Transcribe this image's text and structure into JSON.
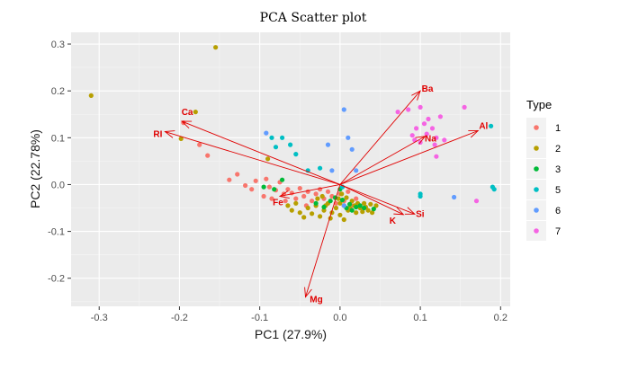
{
  "chart_data": {
    "type": "scatter",
    "title": "PCA Scatter plot",
    "xlabel": "PC1 (27.9%)",
    "ylabel": "PC2 (22.78%)",
    "xlim": [
      -0.335,
      0.212
    ],
    "ylim": [
      -0.26,
      0.325
    ],
    "x_ticks": [
      -0.3,
      -0.2,
      -0.1,
      0.0,
      0.1,
      0.2
    ],
    "x_tick_labels": [
      "-0.3",
      "-0.2",
      "-0.1",
      "0.0",
      "0.1",
      "0.2"
    ],
    "y_ticks": [
      -0.2,
      -0.1,
      0.0,
      0.1,
      0.2,
      0.3
    ],
    "y_tick_labels": [
      "-0.2",
      "-0.1",
      "0.0",
      "0.1",
      "0.2",
      "0.3"
    ],
    "grid": true,
    "legend": {
      "title": "Type",
      "position": "right"
    },
    "colors": {
      "1": "#F8766D",
      "2": "#B79F00",
      "3": "#00BA38",
      "5": "#00BFC4",
      "6": "#619CFF",
      "7": "#F564E3",
      "arrow": "#e00000"
    },
    "loadings": [
      {
        "label": "Ba",
        "x": 0.1,
        "y": 0.2
      },
      {
        "label": "Al",
        "x": 0.172,
        "y": 0.115
      },
      {
        "label": "Na",
        "x": 0.106,
        "y": 0.103
      },
      {
        "label": "Ca",
        "x": -0.197,
        "y": 0.135
      },
      {
        "label": "RI",
        "x": -0.218,
        "y": 0.113
      },
      {
        "label": "Fe",
        "x": -0.075,
        "y": -0.025
      },
      {
        "label": "Si",
        "x": 0.093,
        "y": -0.063
      },
      {
        "label": "K",
        "x": 0.079,
        "y": -0.064
      },
      {
        "label": "Mg",
        "x": -0.043,
        "y": -0.24
      }
    ],
    "series": [
      {
        "name": "1",
        "points": [
          [
            -0.195,
            0.132
          ],
          [
            -0.175,
            0.085
          ],
          [
            -0.165,
            0.062
          ],
          [
            -0.128,
            0.022
          ],
          [
            -0.138,
            0.01
          ],
          [
            -0.118,
            -0.002
          ],
          [
            -0.105,
            0.008
          ],
          [
            -0.092,
            0.012
          ],
          [
            -0.088,
            -0.005
          ],
          [
            -0.08,
            -0.012
          ],
          [
            -0.075,
            0.005
          ],
          [
            -0.07,
            -0.02
          ],
          [
            -0.065,
            -0.01
          ],
          [
            -0.06,
            -0.018
          ],
          [
            -0.055,
            -0.03
          ],
          [
            -0.05,
            -0.008
          ],
          [
            -0.045,
            -0.025
          ],
          [
            -0.04,
            -0.015
          ],
          [
            -0.035,
            -0.035
          ],
          [
            -0.03,
            -0.02
          ],
          [
            -0.025,
            -0.01
          ],
          [
            -0.02,
            -0.03
          ],
          [
            -0.015,
            -0.015
          ],
          [
            -0.01,
            -0.025
          ],
          [
            -0.005,
            -0.04
          ],
          [
            0.0,
            -0.02
          ],
          [
            0.005,
            -0.035
          ],
          [
            0.01,
            -0.015
          ],
          [
            0.015,
            -0.045
          ],
          [
            0.02,
            -0.03
          ],
          [
            -0.095,
            -0.025
          ],
          [
            -0.085,
            -0.03
          ],
          [
            -0.068,
            -0.035
          ],
          [
            -0.042,
            -0.045
          ],
          [
            -0.11,
            -0.01
          ]
        ]
      },
      {
        "name": "2",
        "points": [
          [
            -0.31,
            0.19
          ],
          [
            -0.155,
            0.293
          ],
          [
            -0.198,
            0.098
          ],
          [
            -0.18,
            0.155
          ],
          [
            -0.09,
            0.055
          ],
          [
            -0.065,
            -0.045
          ],
          [
            -0.06,
            -0.055
          ],
          [
            -0.055,
            -0.04
          ],
          [
            -0.05,
            -0.06
          ],
          [
            -0.045,
            -0.07
          ],
          [
            -0.04,
            -0.05
          ],
          [
            -0.035,
            -0.062
          ],
          [
            -0.03,
            -0.045
          ],
          [
            -0.025,
            -0.068
          ],
          [
            -0.02,
            -0.055
          ],
          [
            -0.015,
            -0.04
          ],
          [
            -0.01,
            -0.06
          ],
          [
            -0.005,
            -0.05
          ],
          [
            0.0,
            -0.065
          ],
          [
            0.005,
            -0.045
          ],
          [
            0.01,
            -0.055
          ],
          [
            0.015,
            -0.035
          ],
          [
            0.02,
            -0.06
          ],
          [
            0.025,
            -0.05
          ],
          [
            0.03,
            -0.04
          ],
          [
            0.035,
            -0.055
          ],
          [
            0.04,
            -0.06
          ],
          [
            0.045,
            -0.045
          ],
          [
            0.005,
            -0.075
          ],
          [
            -0.012,
            -0.072
          ],
          [
            0.0,
            -0.04
          ],
          [
            -0.002,
            -0.03
          ],
          [
            0.002,
            -0.02
          ],
          [
            0.008,
            -0.028
          ],
          [
            0.012,
            -0.05
          ],
          [
            0.018,
            -0.045
          ],
          [
            0.022,
            -0.04
          ],
          [
            0.028,
            -0.058
          ],
          [
            0.032,
            -0.048
          ],
          [
            0.038,
            -0.042
          ],
          [
            -0.028,
            -0.03
          ],
          [
            -0.022,
            -0.025
          ],
          [
            -0.018,
            -0.045
          ]
        ]
      },
      {
        "name": "3",
        "points": [
          [
            -0.095,
            -0.005
          ],
          [
            -0.082,
            -0.01
          ],
          [
            -0.072,
            0.01
          ],
          [
            -0.012,
            -0.035
          ],
          [
            -0.006,
            -0.028
          ],
          [
            0.003,
            -0.033
          ],
          [
            0.012,
            -0.042
          ],
          [
            0.02,
            -0.048
          ],
          [
            0.03,
            -0.05
          ],
          [
            0.042,
            -0.052
          ],
          [
            -0.03,
            -0.04
          ],
          [
            -0.02,
            -0.048
          ],
          [
            0.0,
            -0.01
          ],
          [
            0.008,
            -0.05
          ],
          [
            0.015,
            -0.055
          ],
          [
            0.025,
            -0.045
          ]
        ]
      },
      {
        "name": "5",
        "points": [
          [
            -0.085,
            0.1
          ],
          [
            -0.072,
            0.1
          ],
          [
            -0.062,
            0.085
          ],
          [
            -0.055,
            0.065
          ],
          [
            -0.04,
            0.03
          ],
          [
            -0.025,
            0.035
          ],
          [
            0.003,
            -0.005
          ],
          [
            0.1,
            -0.02
          ],
          [
            0.1,
            -0.025
          ],
          [
            0.188,
            0.125
          ],
          [
            0.19,
            -0.005
          ],
          [
            0.192,
            -0.01
          ],
          [
            -0.08,
            0.08
          ]
        ]
      },
      {
        "name": "6",
        "points": [
          [
            -0.092,
            0.11
          ],
          [
            0.005,
            0.16
          ],
          [
            0.01,
            0.1
          ],
          [
            0.015,
            0.075
          ],
          [
            -0.01,
            0.03
          ],
          [
            0.02,
            0.03
          ],
          [
            0.142,
            -0.027
          ],
          [
            0.005,
            -0.045
          ],
          [
            -0.015,
            0.085
          ]
        ]
      },
      {
        "name": "7",
        "points": [
          [
            0.072,
            0.155
          ],
          [
            0.085,
            0.16
          ],
          [
            0.1,
            0.165
          ],
          [
            0.11,
            0.14
          ],
          [
            0.105,
            0.13
          ],
          [
            0.115,
            0.12
          ],
          [
            0.095,
            0.12
          ],
          [
            0.09,
            0.105
          ],
          [
            0.12,
            0.1
          ],
          [
            0.1,
            0.09
          ],
          [
            0.108,
            0.108
          ],
          [
            0.13,
            0.095
          ],
          [
            0.12,
            0.06
          ],
          [
            0.155,
            0.165
          ],
          [
            0.17,
            -0.035
          ],
          [
            0.125,
            0.145
          ],
          [
            0.093,
            0.095
          ],
          [
            0.118,
            0.085
          ]
        ]
      }
    ]
  }
}
